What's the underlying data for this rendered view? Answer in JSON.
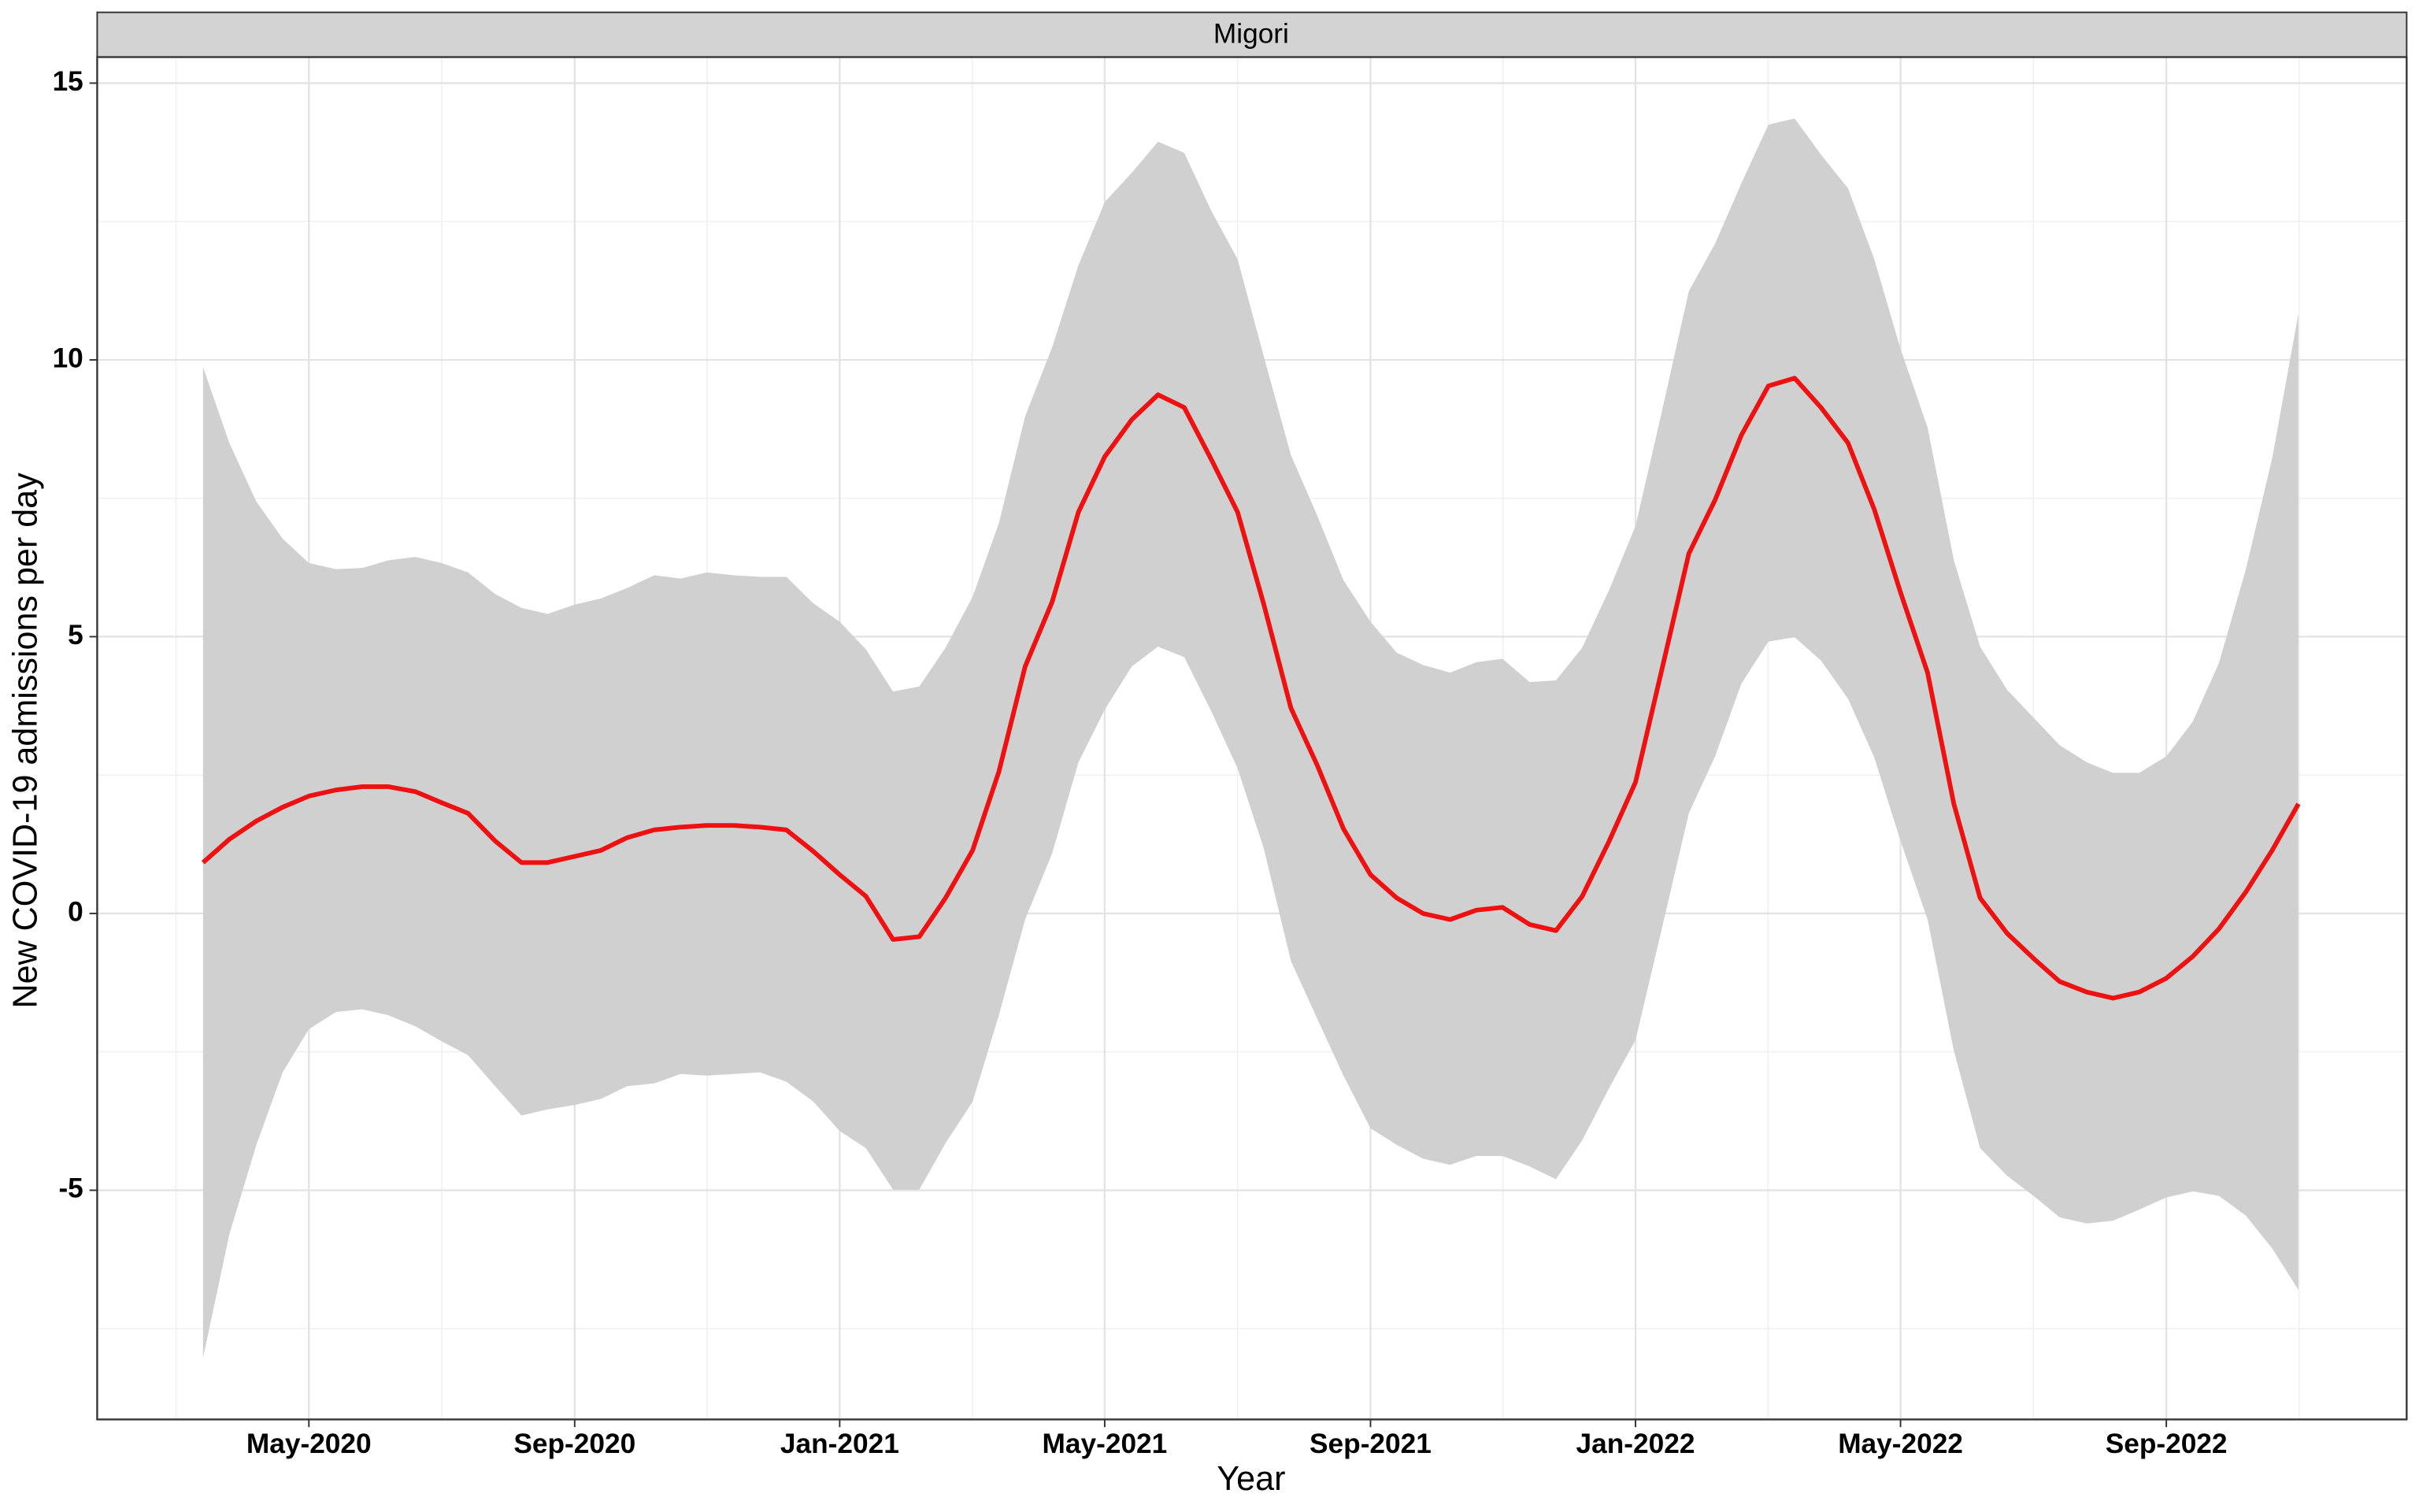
{
  "chart_data": {
    "type": "line",
    "facet": "Migori",
    "xlabel": "Year",
    "ylabel": "New COVID-19 admissions per day",
    "color": "#ee1111",
    "band_color": "#d0d0d0",
    "grid": true,
    "x": [
      2020.2,
      2020.233,
      2020.267,
      2020.3,
      2020.333,
      2020.367,
      2020.4,
      2020.433,
      2020.467,
      2020.5,
      2020.533,
      2020.567,
      2020.6,
      2020.633,
      2020.667,
      2020.7,
      2020.733,
      2020.767,
      2020.8,
      2020.833,
      2020.867,
      2020.9,
      2020.933,
      2020.967,
      2021.0,
      2021.033,
      2021.067,
      2021.1,
      2021.133,
      2021.167,
      2021.2,
      2021.233,
      2021.267,
      2021.3,
      2021.333,
      2021.367,
      2021.4,
      2021.433,
      2021.467,
      2021.5,
      2021.533,
      2021.567,
      2021.6,
      2021.633,
      2021.667,
      2021.7,
      2021.733,
      2021.767,
      2021.8,
      2021.833,
      2021.867,
      2021.9,
      2021.933,
      2021.967,
      2022.0,
      2022.033,
      2022.067,
      2022.1,
      2022.133,
      2022.167,
      2022.2,
      2022.233,
      2022.267,
      2022.3,
      2022.333,
      2022.367,
      2022.4,
      2022.433,
      2022.467,
      2022.5,
      2022.533,
      2022.567,
      2022.6,
      2022.633,
      2022.667,
      2022.7,
      2022.733,
      2022.767,
      2022.8,
      2022.833
    ],
    "values": [
      0.92,
      1.34,
      1.67,
      1.92,
      2.12,
      2.23,
      2.29,
      2.29,
      2.2,
      2.0,
      1.81,
      1.31,
      0.92,
      0.92,
      1.03,
      1.14,
      1.37,
      1.51,
      1.56,
      1.59,
      1.59,
      1.56,
      1.51,
      1.12,
      0.7,
      0.31,
      -0.47,
      -0.42,
      0.28,
      1.14,
      2.56,
      4.46,
      5.63,
      7.25,
      8.25,
      8.92,
      9.37,
      9.14,
      8.2,
      7.25,
      5.58,
      3.71,
      2.68,
      1.53,
      0.7,
      0.28,
      0,
      -0.11,
      0.06,
      0.11,
      -0.2,
      -0.31,
      0.31,
      1.31,
      2.37,
      4.4,
      6.5,
      7.47,
      8.64,
      9.53,
      9.67,
      9.14,
      8.5,
      7.3,
      5.8,
      4.35,
      1.98,
      0.28,
      -0.36,
      -0.81,
      -1.23,
      -1.42,
      -1.53,
      -1.42,
      -1.17,
      -0.78,
      -0.28,
      0.39,
      1.14,
      1.98
    ],
    "upper": [
      9.87,
      8.5,
      7.44,
      6.77,
      6.33,
      6.22,
      6.24,
      6.38,
      6.44,
      6.33,
      6.16,
      5.77,
      5.52,
      5.41,
      5.58,
      5.69,
      5.88,
      6.11,
      6.05,
      6.16,
      6.11,
      6.08,
      6.08,
      5.6,
      5.27,
      4.77,
      4.01,
      4.1,
      4.8,
      5.72,
      7.05,
      8.98,
      10.23,
      11.71,
      12.85,
      13.38,
      13.94,
      13.74,
      12.69,
      11.82,
      10.06,
      8.28,
      7.19,
      6.02,
      5.27,
      4.71,
      4.49,
      4.35,
      4.54,
      4.6,
      4.18,
      4.21,
      4.8,
      5.85,
      7.0,
      9.06,
      11.24,
      12.1,
      13.19,
      14.25,
      14.36,
      13.71,
      13.1,
      11.82,
      10.2,
      8.78,
      6.38,
      4.82,
      4.04,
      3.54,
      3.04,
      2.73,
      2.54,
      2.54,
      2.84,
      3.46,
      4.52,
      6.22,
      8.22,
      10.84
    ],
    "lower": [
      -8.03,
      -5.8,
      -4.18,
      -2.87,
      -2.09,
      -1.78,
      -1.73,
      -1.84,
      -2.04,
      -2.31,
      -2.56,
      -3.12,
      -3.65,
      -3.54,
      -3.46,
      -3.35,
      -3.12,
      -3.07,
      -2.9,
      -2.93,
      -2.9,
      -2.87,
      -3.04,
      -3.4,
      -3.93,
      -4.24,
      -4.99,
      -4.99,
      -4.15,
      -3.4,
      -1.84,
      -0.11,
      1.09,
      2.73,
      3.68,
      4.46,
      4.82,
      4.63,
      3.65,
      2.62,
      1.17,
      -0.86,
      -1.9,
      -2.93,
      -3.88,
      -4.18,
      -4.43,
      -4.54,
      -4.38,
      -4.38,
      -4.57,
      -4.8,
      -4.1,
      -3.15,
      -2.29,
      -0.28,
      1.81,
      2.84,
      4.15,
      4.91,
      4.99,
      4.57,
      3.88,
      2.82,
      1.31,
      -0.11,
      -2.48,
      -4.24,
      -4.74,
      -5.1,
      -5.49,
      -5.6,
      -5.55,
      -5.35,
      -5.13,
      -5.02,
      -5.1,
      -5.46,
      -6.05,
      -6.8
    ],
    "xlim": [
      2020.067,
      2022.969
    ],
    "xticks": [
      {
        "value": 2020.333,
        "label": "May-2020"
      },
      {
        "value": 2020.667,
        "label": "Sep-2020"
      },
      {
        "value": 2021.0,
        "label": "Jan-2021"
      },
      {
        "value": 2021.333,
        "label": "May-2021"
      },
      {
        "value": 2021.667,
        "label": "Sep-2021"
      },
      {
        "value": 2022.0,
        "label": "Jan-2022"
      },
      {
        "value": 2022.333,
        "label": "May-2022"
      },
      {
        "value": 2022.667,
        "label": "Sep-2022"
      }
    ],
    "ylim": [
      -9.14,
      15.47
    ],
    "yticks": [
      -5,
      0,
      5,
      10,
      15
    ]
  }
}
